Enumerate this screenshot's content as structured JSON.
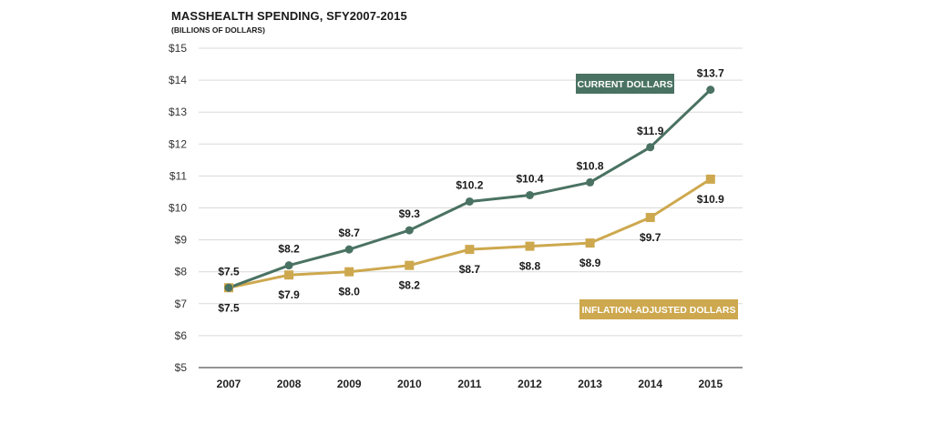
{
  "colors": {
    "current": "#4a7262",
    "inflation": "#cda84e",
    "grid": "#d9d9d9",
    "axis": "#555555"
  },
  "chart_data": {
    "type": "line",
    "title": "MASSHEALTH SPENDING, SFY2007-2015",
    "subtitle": "(BILLIONS OF DOLLARS)",
    "categories": [
      "2007",
      "2008",
      "2009",
      "2010",
      "2011",
      "2012",
      "2013",
      "2014",
      "2015"
    ],
    "ylim": [
      5,
      15
    ],
    "yticks": [
      "$5",
      "$6",
      "$7",
      "$8",
      "$9",
      "$10",
      "$11",
      "$12",
      "$13",
      "$14",
      "$15"
    ],
    "grid": true,
    "series": [
      {
        "name": "CURRENT DOLLARS",
        "values": [
          7.5,
          8.2,
          8.7,
          9.3,
          10.2,
          10.4,
          10.8,
          11.9,
          13.7
        ],
        "labels": [
          "$7.5",
          "$8.2",
          "$8.7",
          "$9.3",
          "$10.2",
          "$10.4",
          "$10.8",
          "$11.9",
          "$13.7"
        ],
        "marker": "circle"
      },
      {
        "name": "INFLATION-ADJUSTED DOLLARS",
        "values": [
          7.5,
          7.9,
          8.0,
          8.2,
          8.7,
          8.8,
          8.9,
          9.7,
          10.9
        ],
        "labels": [
          "$7.5",
          "$7.9",
          "$8.0",
          "$8.2",
          "$8.7",
          "$8.8",
          "$8.9",
          "$9.7",
          "$10.9"
        ],
        "marker": "square"
      }
    ]
  }
}
